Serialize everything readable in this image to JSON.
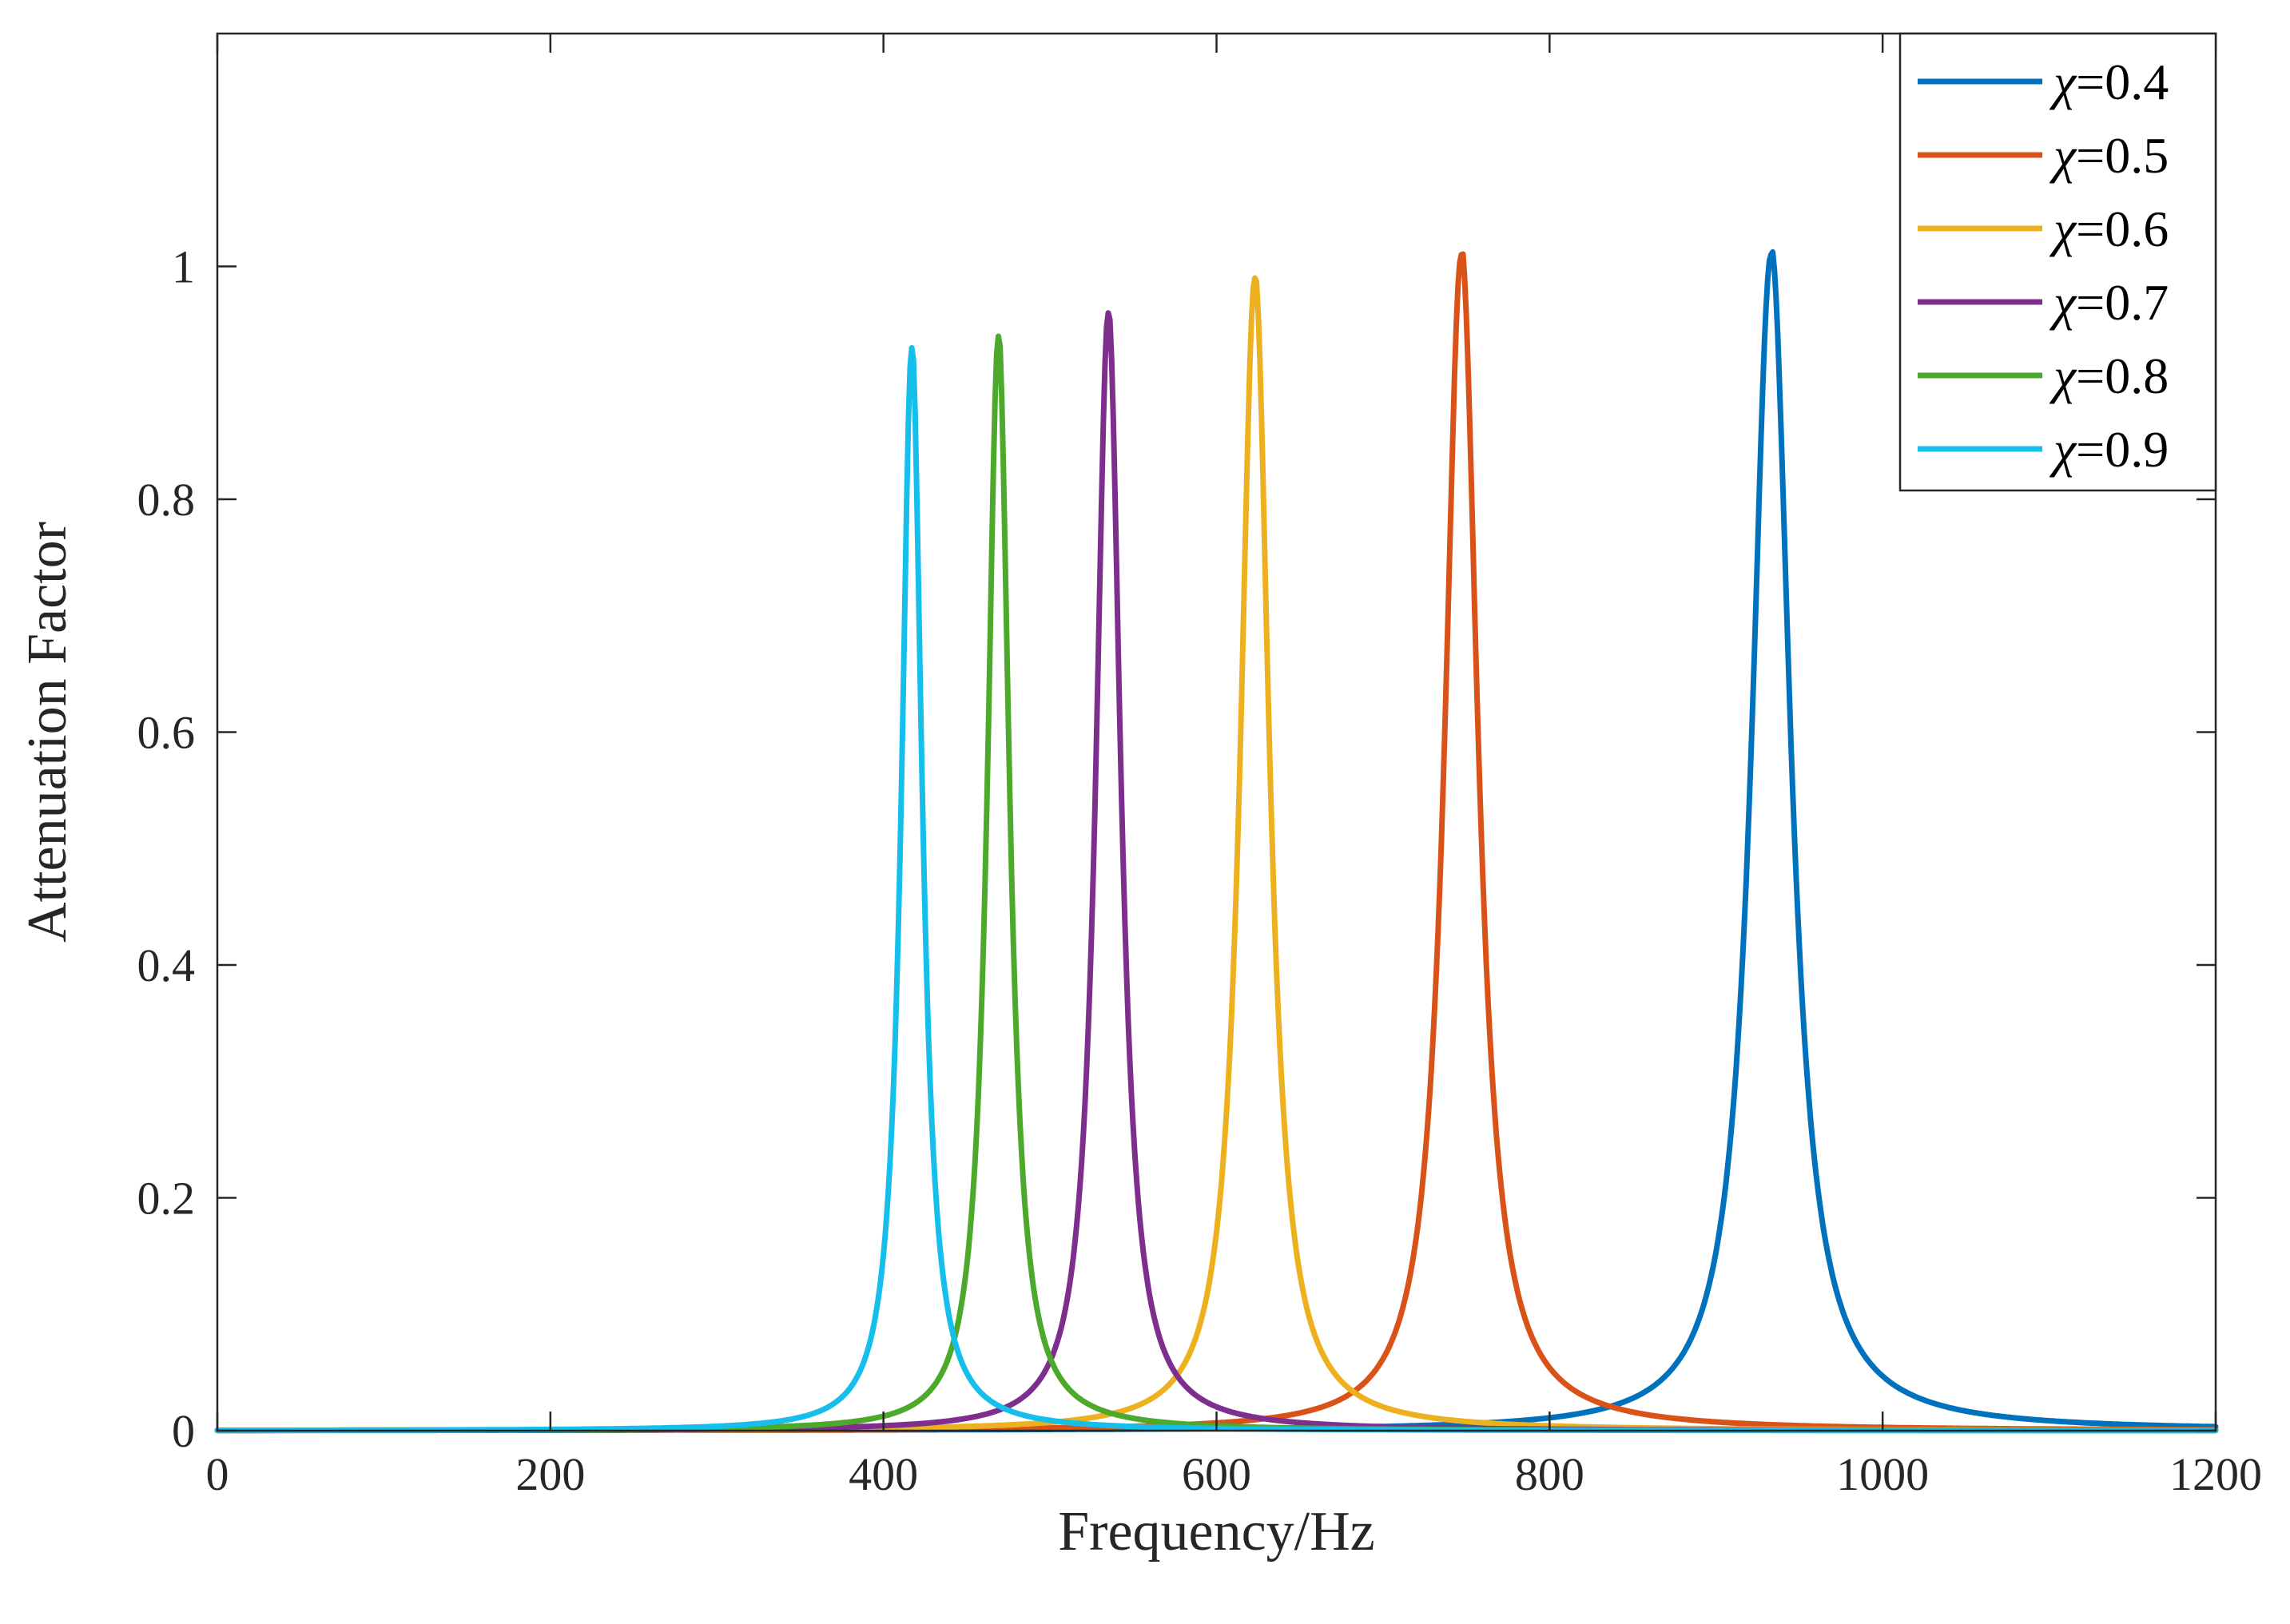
{
  "chart_data": {
    "type": "line",
    "title": "",
    "xlabel": "Frequency/Hz",
    "ylabel": "Attenuation Factor",
    "xlim": [
      0,
      1200
    ],
    "ylim": [
      0,
      1.2
    ],
    "xticks": [
      0,
      200,
      400,
      600,
      800,
      1000,
      1200
    ],
    "yticks": [
      0,
      0.2,
      0.4,
      0.6,
      0.8,
      1
    ],
    "xtick_labels": [
      "0",
      "200",
      "400",
      "600",
      "800",
      "1000",
      "1200"
    ],
    "ytick_labels": [
      "0",
      "0.2",
      "0.4",
      "0.6",
      "0.8",
      "1"
    ],
    "grid": false,
    "legend_position": "top-right",
    "series": [
      {
        "name": "χ=0.4",
        "symbol": "χ",
        "value_text": "=0.4",
        "color": "#0072BD",
        "peak_x": 933,
        "peak_y": 1.01,
        "width": 14,
        "tail": 0.015
      },
      {
        "name": "χ=0.5",
        "symbol": "χ",
        "value_text": "=0.5",
        "color": "#D95319",
        "peak_x": 747,
        "peak_y": 1.01,
        "width": 12,
        "tail": 0.015
      },
      {
        "name": "χ=0.6",
        "symbol": "χ",
        "value_text": "=0.6",
        "color": "#EDB120",
        "peak_x": 623,
        "peak_y": 0.99,
        "width": 10.5,
        "tail": 0.012
      },
      {
        "name": "χ=0.7",
        "symbol": "χ",
        "value_text": "=0.7",
        "color": "#7E2F8E",
        "peak_x": 535,
        "peak_y": 0.96,
        "width": 9,
        "tail": 0.012
      },
      {
        "name": "χ=0.8",
        "symbol": "χ",
        "value_text": "=0.8",
        "color": "#4DA92B",
        "peak_x": 469,
        "peak_y": 0.94,
        "width": 8,
        "tail": 0.012
      },
      {
        "name": "χ=0.9",
        "symbol": "χ",
        "value_text": "=0.9",
        "color": "#16BEEB",
        "peak_x": 417,
        "peak_y": 0.93,
        "width": 7.5,
        "tail": 0.012
      }
    ]
  }
}
